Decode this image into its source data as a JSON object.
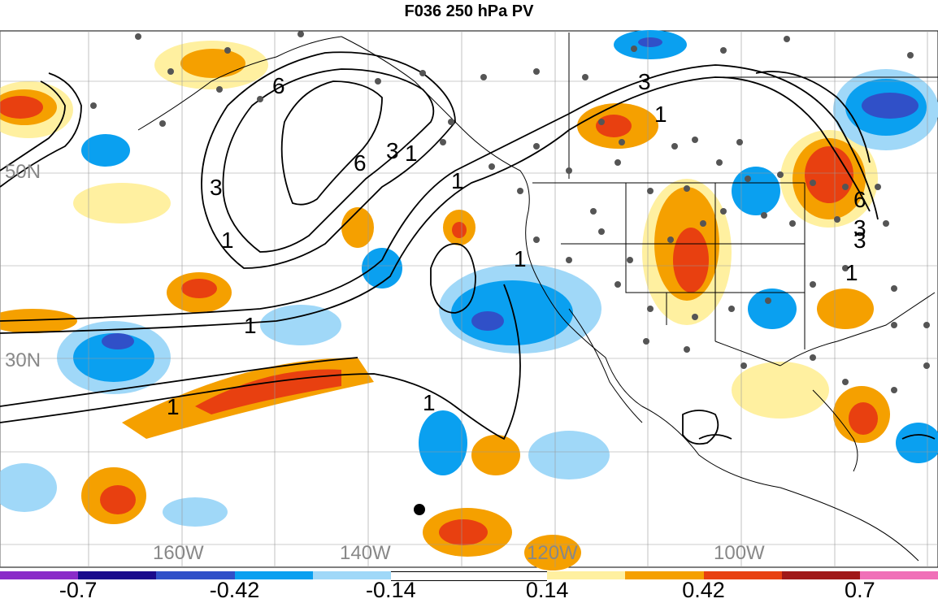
{
  "title": "F036 250 hPa PV",
  "lat_labels": [
    "50N",
    "30N"
  ],
  "lon_labels": [
    "160W",
    "140W",
    "120W",
    "100W"
  ],
  "contour_labels": [
    "6",
    "3",
    "1",
    "6",
    "3",
    "1",
    "1",
    "1",
    "3",
    "1",
    "1",
    "6",
    "3",
    "1",
    "1",
    "1",
    "3"
  ],
  "colorbar": {
    "colors": [
      "#8a2bc8",
      "#1a0a8c",
      "#3050c8",
      "#0aa0f0",
      "#a0d8f8",
      "#ffffff",
      "#ffffff",
      "#fff0a0",
      "#f5a000",
      "#e84010",
      "#a01818",
      "#f070b8"
    ],
    "tick_labels": [
      "-0.7",
      "-0.42",
      "-0.14",
      "0.14",
      "0.42",
      "0.7"
    ]
  }
}
